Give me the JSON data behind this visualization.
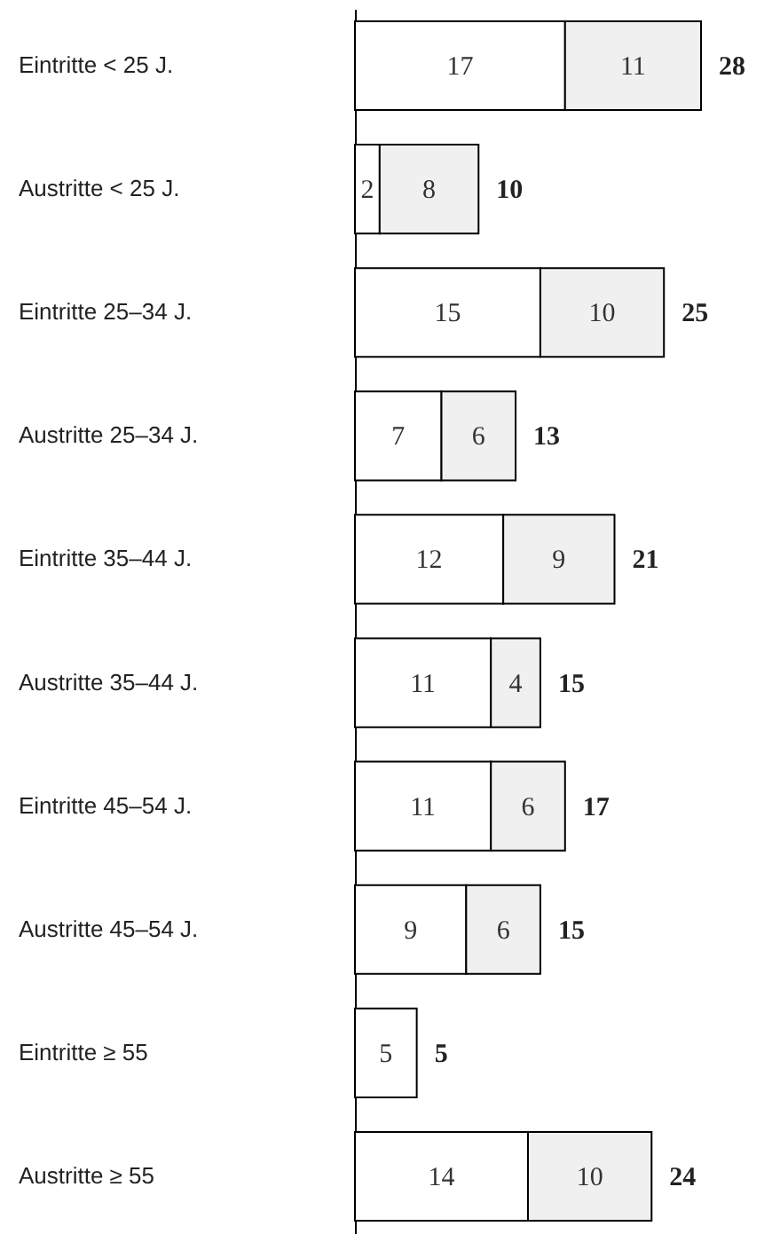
{
  "chart_data": {
    "type": "bar",
    "orientation": "horizontal",
    "stacked": true,
    "data_labels": true,
    "tick_labels": "y",
    "categories": [
      "Eintritte < 25 J.",
      "Austritte < 25 J.",
      "Eintritte 25–34 J.",
      "Austritte 25–34 J.",
      "Eintritte 35–44 J.",
      "Austritte 35–44 J.",
      "Eintritte 45–54 J.",
      "Austritte 45–54 J.",
      "Eintritte ≥ 55",
      "Austritte ≥ 55"
    ],
    "series": [
      {
        "color": "#ffffff",
        "values": [
          17,
          2,
          15,
          7,
          12,
          11,
          11,
          9,
          5,
          14
        ]
      },
      {
        "color": "#f0f0f0",
        "values": [
          11,
          8,
          10,
          6,
          9,
          4,
          6,
          6,
          null,
          10
        ]
      }
    ],
    "totals": [
      "28",
      "10",
      "25",
      "13",
      "21",
      "15",
      "17",
      "15",
      "5",
      "24"
    ]
  }
}
